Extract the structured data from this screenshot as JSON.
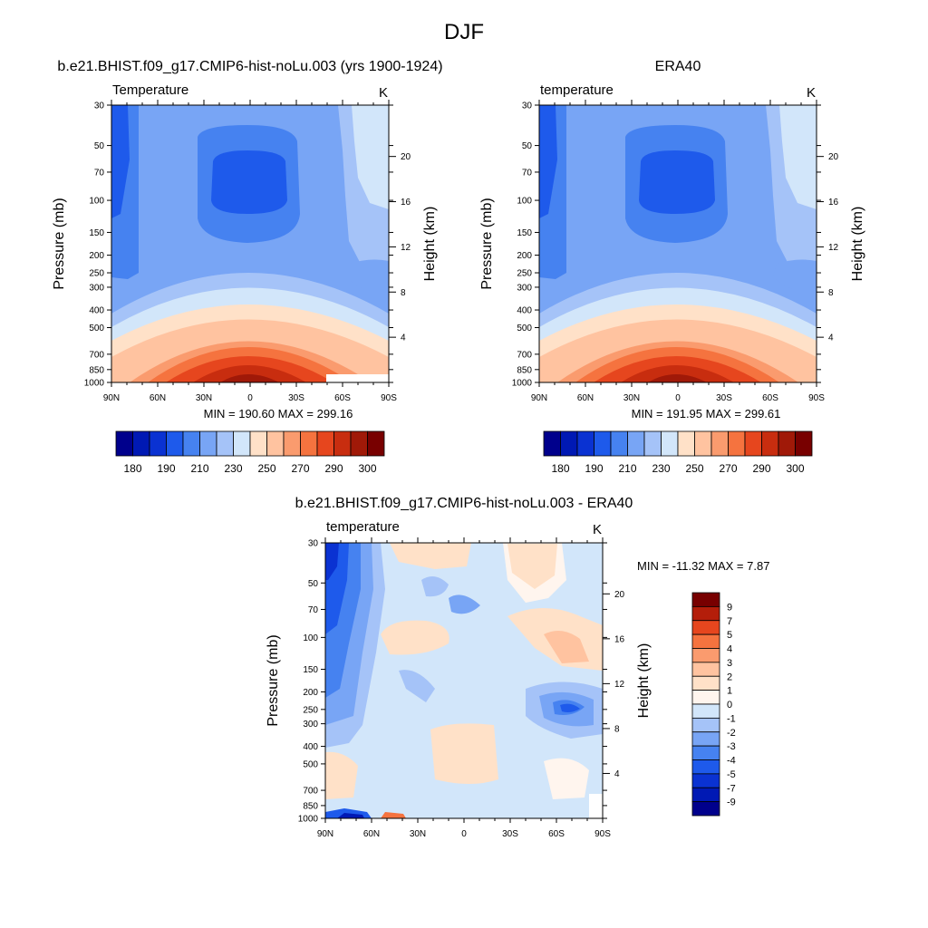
{
  "figure_title": "DJF",
  "panels": [
    {
      "title": "b.e21.BHIST.f09_g17.CMIP6-hist-noLu.003 (yrs 1900-1924)",
      "left_label": "Temperature",
      "units": "K",
      "stats": "MIN = 190.60  MAX = 299.16"
    },
    {
      "title": "ERA40",
      "left_label": "temperature",
      "units": "K",
      "stats": "MIN = 191.95  MAX = 299.61"
    },
    {
      "title": "b.e21.BHIST.f09_g17.CMIP6-hist-noLu.003 - ERA40",
      "left_label": "temperature",
      "units": "K",
      "stats": "MIN = -11.32  MAX =   7.87"
    }
  ],
  "axes": {
    "ylabel": "Pressure (mb)",
    "ylabel_right": "Height (km)",
    "pressure_ticks": [
      "30",
      "50",
      "70",
      "100",
      "150",
      "200",
      "250",
      "300",
      "400",
      "500",
      "700",
      "850",
      "1000"
    ],
    "height_ticks": [
      "20",
      "16",
      "12",
      "8",
      "4"
    ],
    "lat_ticks": [
      "90N",
      "60N",
      "30N",
      "0",
      "30S",
      "60S",
      "90S"
    ]
  },
  "colorbars": {
    "absolute": {
      "labels": [
        "180",
        "190",
        "210",
        "230",
        "250",
        "270",
        "290",
        "300"
      ],
      "colors": [
        "#00008c",
        "#0019b4",
        "#0a32d2",
        "#1e5aeb",
        "#4682f0",
        "#78a5f5",
        "#a5c3f8",
        "#d2e6fa",
        "#ffe1c8",
        "#ffc3a0",
        "#fa9b6e",
        "#f5733f",
        "#e6461e",
        "#c82d0f",
        "#a01908",
        "#780000"
      ]
    },
    "difference": {
      "labels": [
        "9",
        "7",
        "5",
        "4",
        "3",
        "2",
        "1",
        "0",
        "-1",
        "-2",
        "-3",
        "-4",
        "-5",
        "-7",
        "-9"
      ],
      "colors": [
        "#780000",
        "#b41e0a",
        "#e6461e",
        "#f5733f",
        "#fa9b6e",
        "#ffc3a0",
        "#ffe1c8",
        "#fff5ee",
        "#d2e6fa",
        "#a5c3f8",
        "#78a5f5",
        "#4682f0",
        "#1e5aeb",
        "#0a32d2",
        "#0019b4",
        "#00008c"
      ]
    }
  },
  "chart_data": [
    {
      "type": "heatmap",
      "title": "b.e21.BHIST.f09_g17.CMIP6-hist-noLu.003 (yrs 1900-1924)",
      "subtitle": "Temperature",
      "units": "K",
      "x": [
        "90N",
        "60N",
        "30N",
        "0",
        "30S",
        "60S",
        "90S"
      ],
      "y": [
        30,
        50,
        70,
        100,
        150,
        200,
        250,
        300,
        400,
        500,
        700,
        850,
        1000
      ],
      "min": 190.6,
      "max": 299.16,
      "ylabel": "Pressure (mb)",
      "ylabel_right": "Height (km)"
    },
    {
      "type": "heatmap",
      "title": "ERA40",
      "subtitle": "temperature",
      "units": "K",
      "x": [
        "90N",
        "60N",
        "30N",
        "0",
        "30S",
        "60S",
        "90S"
      ],
      "y": [
        30,
        50,
        70,
        100,
        150,
        200,
        250,
        300,
        400,
        500,
        700,
        850,
        1000
      ],
      "min": 191.95,
      "max": 299.61,
      "ylabel": "Pressure (mb)",
      "ylabel_right": "Height (km)"
    },
    {
      "type": "heatmap",
      "title": "b.e21.BHIST.f09_g17.CMIP6-hist-noLu.003 - ERA40",
      "subtitle": "temperature",
      "units": "K",
      "x": [
        "90N",
        "60N",
        "30N",
        "0",
        "30S",
        "60S",
        "90S"
      ],
      "y": [
        30,
        50,
        70,
        100,
        150,
        200,
        250,
        300,
        400,
        500,
        700,
        850,
        1000
      ],
      "min": -11.32,
      "max": 7.87,
      "ylabel": "Pressure (mb)",
      "ylabel_right": "Height (km)"
    }
  ]
}
